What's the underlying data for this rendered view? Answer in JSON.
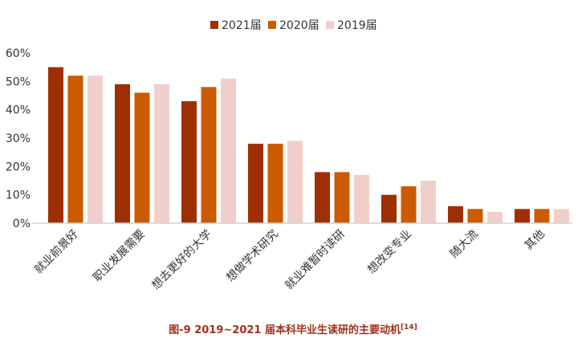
{
  "chart_data": {
    "type": "bar",
    "title": "图-9 2019~2021 届本科毕业生读研的主要动机",
    "title_ref": "[14]",
    "xlabel": "",
    "ylabel": "",
    "ylim": [
      0,
      60
    ],
    "yticks": [
      "0%",
      "10%",
      "20%",
      "30%",
      "40%",
      "50%",
      "60%"
    ],
    "grid": false,
    "legend_position": "top",
    "categories": [
      "就业前景好",
      "职业发展需要",
      "想去更好的大学",
      "想做学术研究",
      "就业难暂时读研",
      "想改变专业",
      "随大流",
      "其他"
    ],
    "series": [
      {
        "name": "2021届",
        "color": "#9e2f02",
        "values": [
          55,
          49,
          43,
          28,
          18,
          10,
          6,
          5
        ]
      },
      {
        "name": "2020届",
        "color": "#cc5a00",
        "values": [
          52,
          46,
          48,
          28,
          18,
          13,
          5,
          5
        ]
      },
      {
        "name": "2019届",
        "color": "#f0cfcb",
        "values": [
          52,
          49,
          51,
          29,
          17,
          15,
          4,
          5
        ]
      }
    ]
  }
}
